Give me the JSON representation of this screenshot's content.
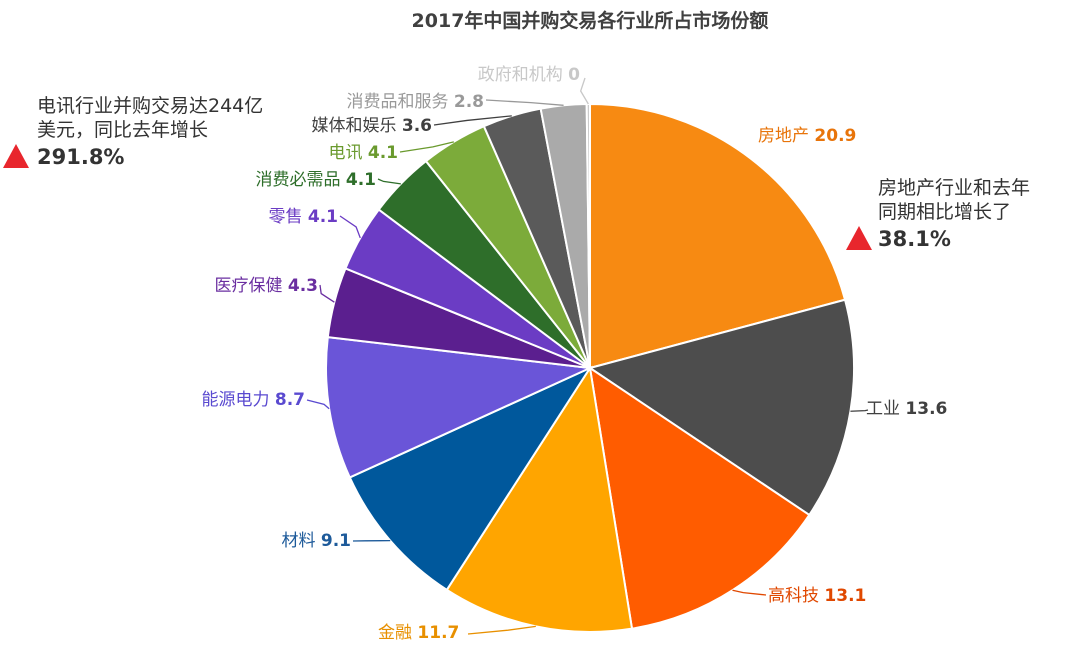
{
  "chart_data": {
    "type": "pie",
    "title": "2017年中国并购交易各行业所占市场份额",
    "slices": [
      {
        "label": "房地产",
        "value": 20.9,
        "color": "#f78a12",
        "label_color": "#e8740a"
      },
      {
        "label": "工业",
        "value": 13.6,
        "color": "#4d4d4d",
        "label_color": "#404040"
      },
      {
        "label": "高科技",
        "value": 13.1,
        "color": "#ff5c00",
        "label_color": "#e04800"
      },
      {
        "label": "金融",
        "value": 11.7,
        "color": "#ffa500",
        "label_color": "#e89000"
      },
      {
        "label": "材料",
        "value": 9.1,
        "color": "#00589c",
        "label_color": "#1d5a9a"
      },
      {
        "label": "能源电力",
        "value": 8.7,
        "color": "#6a55d8",
        "label_color": "#5a4ad0"
      },
      {
        "label": "医疗保健",
        "value": 4.3,
        "color": "#5b1f8f",
        "label_color": "#6a2ea0"
      },
      {
        "label": "零售",
        "value": 4.1,
        "color": "#6b3cc4",
        "label_color": "#6b3cc4"
      },
      {
        "label": "消费必需品",
        "value": 4.1,
        "color": "#2e6e2a",
        "label_color": "#2e6e2a"
      },
      {
        "label": "电讯",
        "value": 4.1,
        "color": "#7cab3a",
        "label_color": "#6a9a2e"
      },
      {
        "label": "媒体和娱乐",
        "value": 3.6,
        "color": "#5a5a5a",
        "label_color": "#404040"
      },
      {
        "label": "消费品和服务",
        "value": 2.8,
        "color": "#aaaaaa",
        "label_color": "#999999"
      },
      {
        "label": "政府和机构",
        "value": 0,
        "color": "#cccccc",
        "label_color": "#c8c8c8"
      }
    ],
    "legend": "none"
  },
  "annotations": {
    "telecom": {
      "line1": "电讯行业并购交易达244亿",
      "line2": "美元，同比去年增长",
      "pct": "291.8%"
    },
    "realestate": {
      "line1": "房地产行业和去年",
      "line2": "同期相比增长了",
      "pct": "38.1%"
    }
  }
}
